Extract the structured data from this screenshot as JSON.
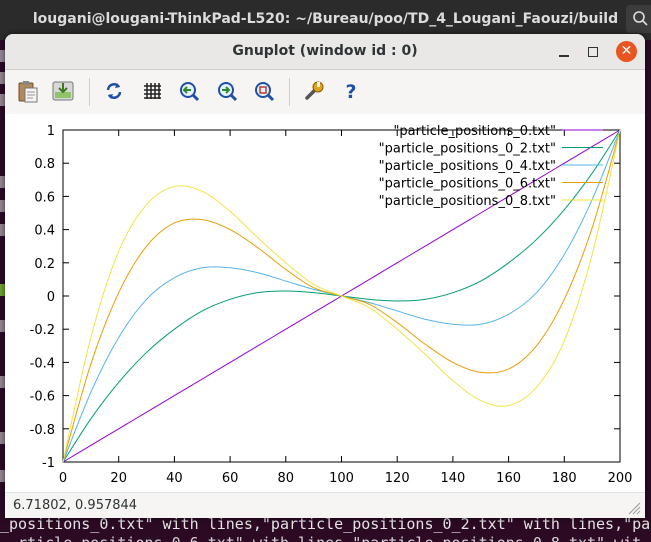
{
  "terminal": {
    "title": "lougani@lougani-ThinkPad-L520: ~/Bureau/poo/TD_4_Lougani_Faouzi/build",
    "bottom_line": "_positions_0.txt\" with lines,\"particle_positions_0_2.txt\" with lines,\"par",
    "bottom_line2": "  rticle_positions_0_6.txt\" with lines,\"particle_positions_0_8.txt\" wit"
  },
  "window": {
    "title": "Gnuplot (window id : 0)",
    "close_glyph": "✕"
  },
  "toolbar": {
    "items": [
      "copy-to-clipboard",
      "export",
      "replot",
      "toggle-grid",
      "previous-zoom",
      "next-zoom",
      "autoscale",
      "preferences",
      "help"
    ]
  },
  "status": {
    "coordinates": "6.71802, 0.957844"
  },
  "colors": {
    "series": [
      "#9400d3",
      "#009e73",
      "#56b4e9",
      "#e69f00",
      "#f0e442"
    ],
    "terminal_bg": "#2c0a24"
  },
  "chart_data": {
    "type": "line",
    "title": "",
    "xlabel": "",
    "ylabel": "",
    "xlim": [
      0,
      200
    ],
    "ylim": [
      -1,
      1
    ],
    "xticks": [
      "0",
      "20",
      "40",
      "60",
      "80",
      "100",
      "120",
      "140",
      "160",
      "180",
      "200"
    ],
    "yticks": [
      "-1",
      "-0.8",
      "-0.6",
      "-0.4",
      "-0.2",
      "0",
      "0.2",
      "0.4",
      "0.6",
      "0.8",
      "1"
    ],
    "grid": false,
    "legend": "top-right",
    "x": [
      0,
      10,
      20,
      30,
      40,
      50,
      60,
      70,
      80,
      90,
      100,
      110,
      120,
      130,
      140,
      150,
      160,
      170,
      180,
      190,
      200
    ],
    "series": [
      {
        "name": "\"particle_positions_0.txt\"",
        "values": [
          -1,
          -0.9,
          -0.8,
          -0.7,
          -0.6,
          -0.5,
          -0.4,
          -0.3,
          -0.2,
          -0.1,
          0,
          0.1,
          0.2,
          0.3,
          0.4,
          0.5,
          0.6,
          0.7,
          0.8,
          0.9,
          1
        ]
      },
      {
        "name": "\"particle_positions_0_2.txt\"",
        "values": [
          -1,
          -0.74,
          -0.52,
          -0.34,
          -0.2,
          -0.09,
          -0.02,
          0.02,
          0.03,
          0.02,
          0,
          -0.02,
          -0.03,
          -0.02,
          0.02,
          0.09,
          0.2,
          0.34,
          0.52,
          0.74,
          1
        ]
      },
      {
        "name": "\"particle_positions_0_4.txt\"",
        "values": [
          -1,
          -0.58,
          -0.25,
          -0.02,
          0.11,
          0.17,
          0.17,
          0.14,
          0.09,
          0.04,
          0,
          -0.04,
          -0.09,
          -0.14,
          -0.17,
          -0.17,
          -0.11,
          0.02,
          0.25,
          0.58,
          1
        ]
      },
      {
        "name": "\"particle_positions_0_6.txt\"",
        "values": [
          -1,
          -0.41,
          0.02,
          0.3,
          0.44,
          0.46,
          0.4,
          0.29,
          0.16,
          0.05,
          0,
          -0.05,
          -0.16,
          -0.29,
          -0.4,
          -0.46,
          -0.44,
          -0.3,
          -0.02,
          0.41,
          1
        ]
      },
      {
        "name": "\"particle_positions_0_8.txt\"",
        "values": [
          -1,
          -0.25,
          0.27,
          0.55,
          0.66,
          0.63,
          0.51,
          0.35,
          0.2,
          0.07,
          0,
          -0.07,
          -0.2,
          -0.35,
          -0.51,
          -0.63,
          -0.66,
          -0.55,
          -0.27,
          0.25,
          1
        ]
      }
    ]
  }
}
